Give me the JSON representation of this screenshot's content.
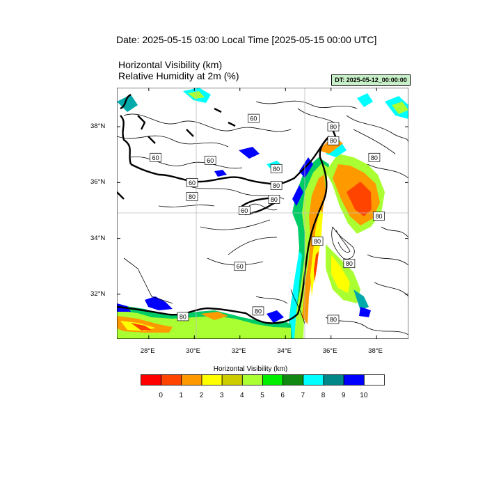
{
  "header": {
    "date_line": "Date: 2025-05-15  03:00 Local Time [2025-05-15  00:00 UTC]",
    "field_line_1": "Horizontal Visibility   (km)",
    "field_line_2": "Relative Humidity at 2m   (%)",
    "dt_badge": "DT: 2025-05-12_00:00:00"
  },
  "map": {
    "lon_range": [
      26.6,
      39.4
    ],
    "lat_range": [
      30.4,
      39.4
    ],
    "lat_ticks": [
      {
        "value": 38,
        "label": "38°N"
      },
      {
        "value": 36,
        "label": "36°N"
      },
      {
        "value": 34,
        "label": "34°N"
      },
      {
        "value": 32,
        "label": "32°N"
      }
    ],
    "lon_ticks": [
      {
        "value": 28,
        "label": "28°E"
      },
      {
        "value": 30,
        "label": "30°E"
      },
      {
        "value": 32,
        "label": "32°E"
      },
      {
        "value": 34,
        "label": "34°E"
      },
      {
        "value": 36,
        "label": "36°E"
      },
      {
        "value": 38,
        "label": "38°E"
      }
    ],
    "gridlines": {
      "lon": [
        30,
        34
      ],
      "lat": [
        35
      ]
    },
    "contour_labels": [
      {
        "text": "60",
        "lon": 32.6,
        "lat": 38.3
      },
      {
        "text": "80",
        "lon": 36.1,
        "lat": 38.0
      },
      {
        "text": "80",
        "lon": 36.1,
        "lat": 37.5
      },
      {
        "text": "60",
        "lon": 28.3,
        "lat": 36.9
      },
      {
        "text": "60",
        "lon": 30.7,
        "lat": 36.8
      },
      {
        "text": "80",
        "lon": 33.6,
        "lat": 36.5
      },
      {
        "text": "80",
        "lon": 37.9,
        "lat": 36.9
      },
      {
        "text": "60",
        "lon": 29.9,
        "lat": 36.0
      },
      {
        "text": "80",
        "lon": 33.6,
        "lat": 35.9
      },
      {
        "text": "80",
        "lon": 29.9,
        "lat": 35.5
      },
      {
        "text": "80",
        "lon": 33.5,
        "lat": 35.4
      },
      {
        "text": "60",
        "lon": 32.2,
        "lat": 35.0
      },
      {
        "text": "80",
        "lon": 38.1,
        "lat": 34.8
      },
      {
        "text": "80",
        "lon": 35.4,
        "lat": 33.9
      },
      {
        "text": "80",
        "lon": 36.8,
        "lat": 33.1
      },
      {
        "text": "60",
        "lon": 32.0,
        "lat": 33.0
      },
      {
        "text": "80",
        "lon": 32.8,
        "lat": 31.4
      },
      {
        "text": "80",
        "lon": 29.5,
        "lat": 31.2
      },
      {
        "text": "80",
        "lon": 36.1,
        "lat": 31.1
      }
    ]
  },
  "colorbar": {
    "title": "Horizontal Visibility  (km)",
    "colors": [
      "#ff0000",
      "#ff4400",
      "#ff9900",
      "#ffff00",
      "#cccc00",
      "#aaff33",
      "#00ee00",
      "#118811",
      "#00ffff",
      "#008888",
      "#0000ff",
      "#ffffff"
    ],
    "labels": [
      "0",
      "1",
      "2",
      "3",
      "4",
      "5",
      "6",
      "7",
      "8",
      "9",
      "10"
    ]
  }
}
